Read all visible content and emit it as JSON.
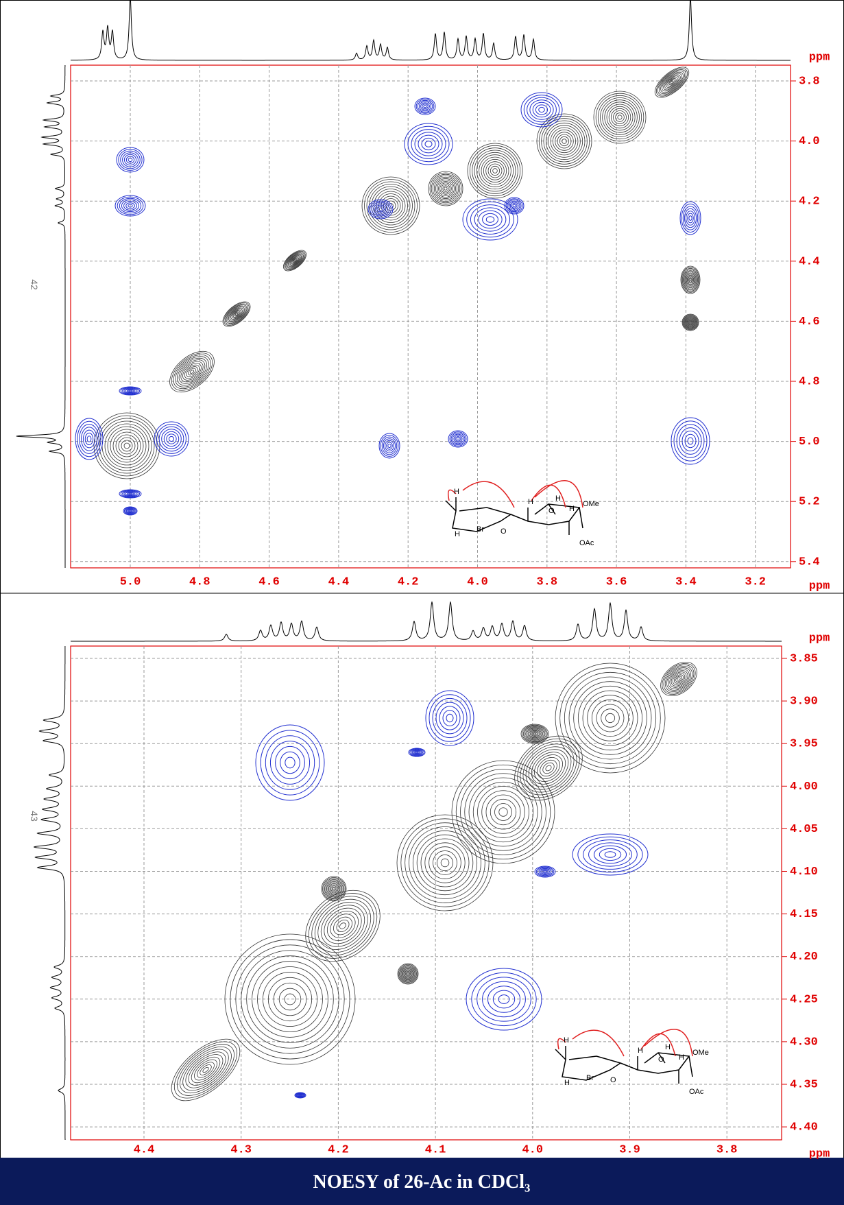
{
  "panels": [
    {
      "page_number": "42",
      "x_ticks": [
        "5.0",
        "4.8",
        "4.6",
        "4.4",
        "4.2",
        "4.0",
        "3.8",
        "3.6",
        "3.4",
        "3.2"
      ],
      "y_ticks": [
        "3.8",
        "4.0",
        "4.2",
        "4.4",
        "4.6",
        "4.8",
        "5.0",
        "5.2",
        "5.4"
      ],
      "x_unit": "ppm",
      "y_unit": "ppm",
      "molecule_labels": [
        "H",
        "H",
        "H",
        "OMe",
        "OAc",
        "Br",
        "O",
        "H",
        "O",
        "H"
      ]
    },
    {
      "page_number": "43",
      "x_ticks": [
        "4.4",
        "4.3",
        "4.2",
        "4.1",
        "4.0",
        "3.9",
        "3.8"
      ],
      "y_ticks": [
        "3.85",
        "3.90",
        "3.95",
        "4.00",
        "4.05",
        "4.10",
        "4.15",
        "4.20",
        "4.25",
        "4.30",
        "4.35",
        "4.40"
      ],
      "x_unit": "ppm",
      "y_unit": "ppm",
      "molecule_labels": [
        "H",
        "H",
        "H",
        "OMe",
        "OAc",
        "Br",
        "O",
        "H",
        "O",
        "H"
      ]
    }
  ],
  "caption": "NOESY of 26-Ac in CDCl₃"
}
